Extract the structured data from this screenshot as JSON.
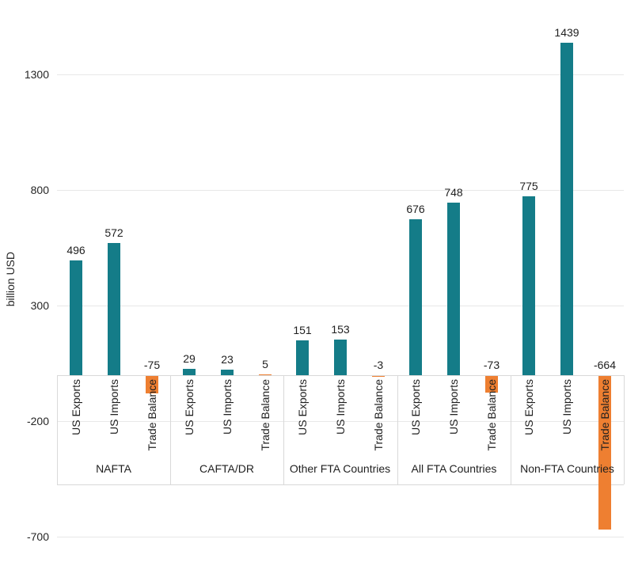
{
  "chart_data": {
    "type": "bar",
    "title": "",
    "ylabel": "billion USD",
    "xlabel": "",
    "yticks": [
      1300,
      800,
      300,
      -200,
      -700
    ],
    "ylim": [
      -750,
      1450
    ],
    "grid": true,
    "legend": "none",
    "data_labels_shown": true,
    "categories": [
      "NAFTA",
      "CAFTA/DR",
      "Other FTA Countries",
      "All FTA Countries",
      "Non-FTA Countries"
    ],
    "series_per_category": [
      "US Exports",
      "US Imports",
      "Trade Balance"
    ],
    "series": [
      {
        "name": "US Exports",
        "color": "#147C88",
        "values": [
          496,
          29,
          151,
          676,
          775
        ]
      },
      {
        "name": "US Imports",
        "color": "#147C88",
        "values": [
          572,
          23,
          153,
          748,
          1439
        ]
      },
      {
        "name": "Trade Balance",
        "color": "#EE7F31",
        "values": [
          -75,
          5,
          -3,
          -73,
          -664
        ]
      }
    ],
    "colors": {
      "exports_imports": "#147C88",
      "trade_balance": "#EE7F31",
      "gridline": "#E8E8E8",
      "axis_line": "#D9D9D9",
      "text": "#1F1F1F"
    }
  }
}
